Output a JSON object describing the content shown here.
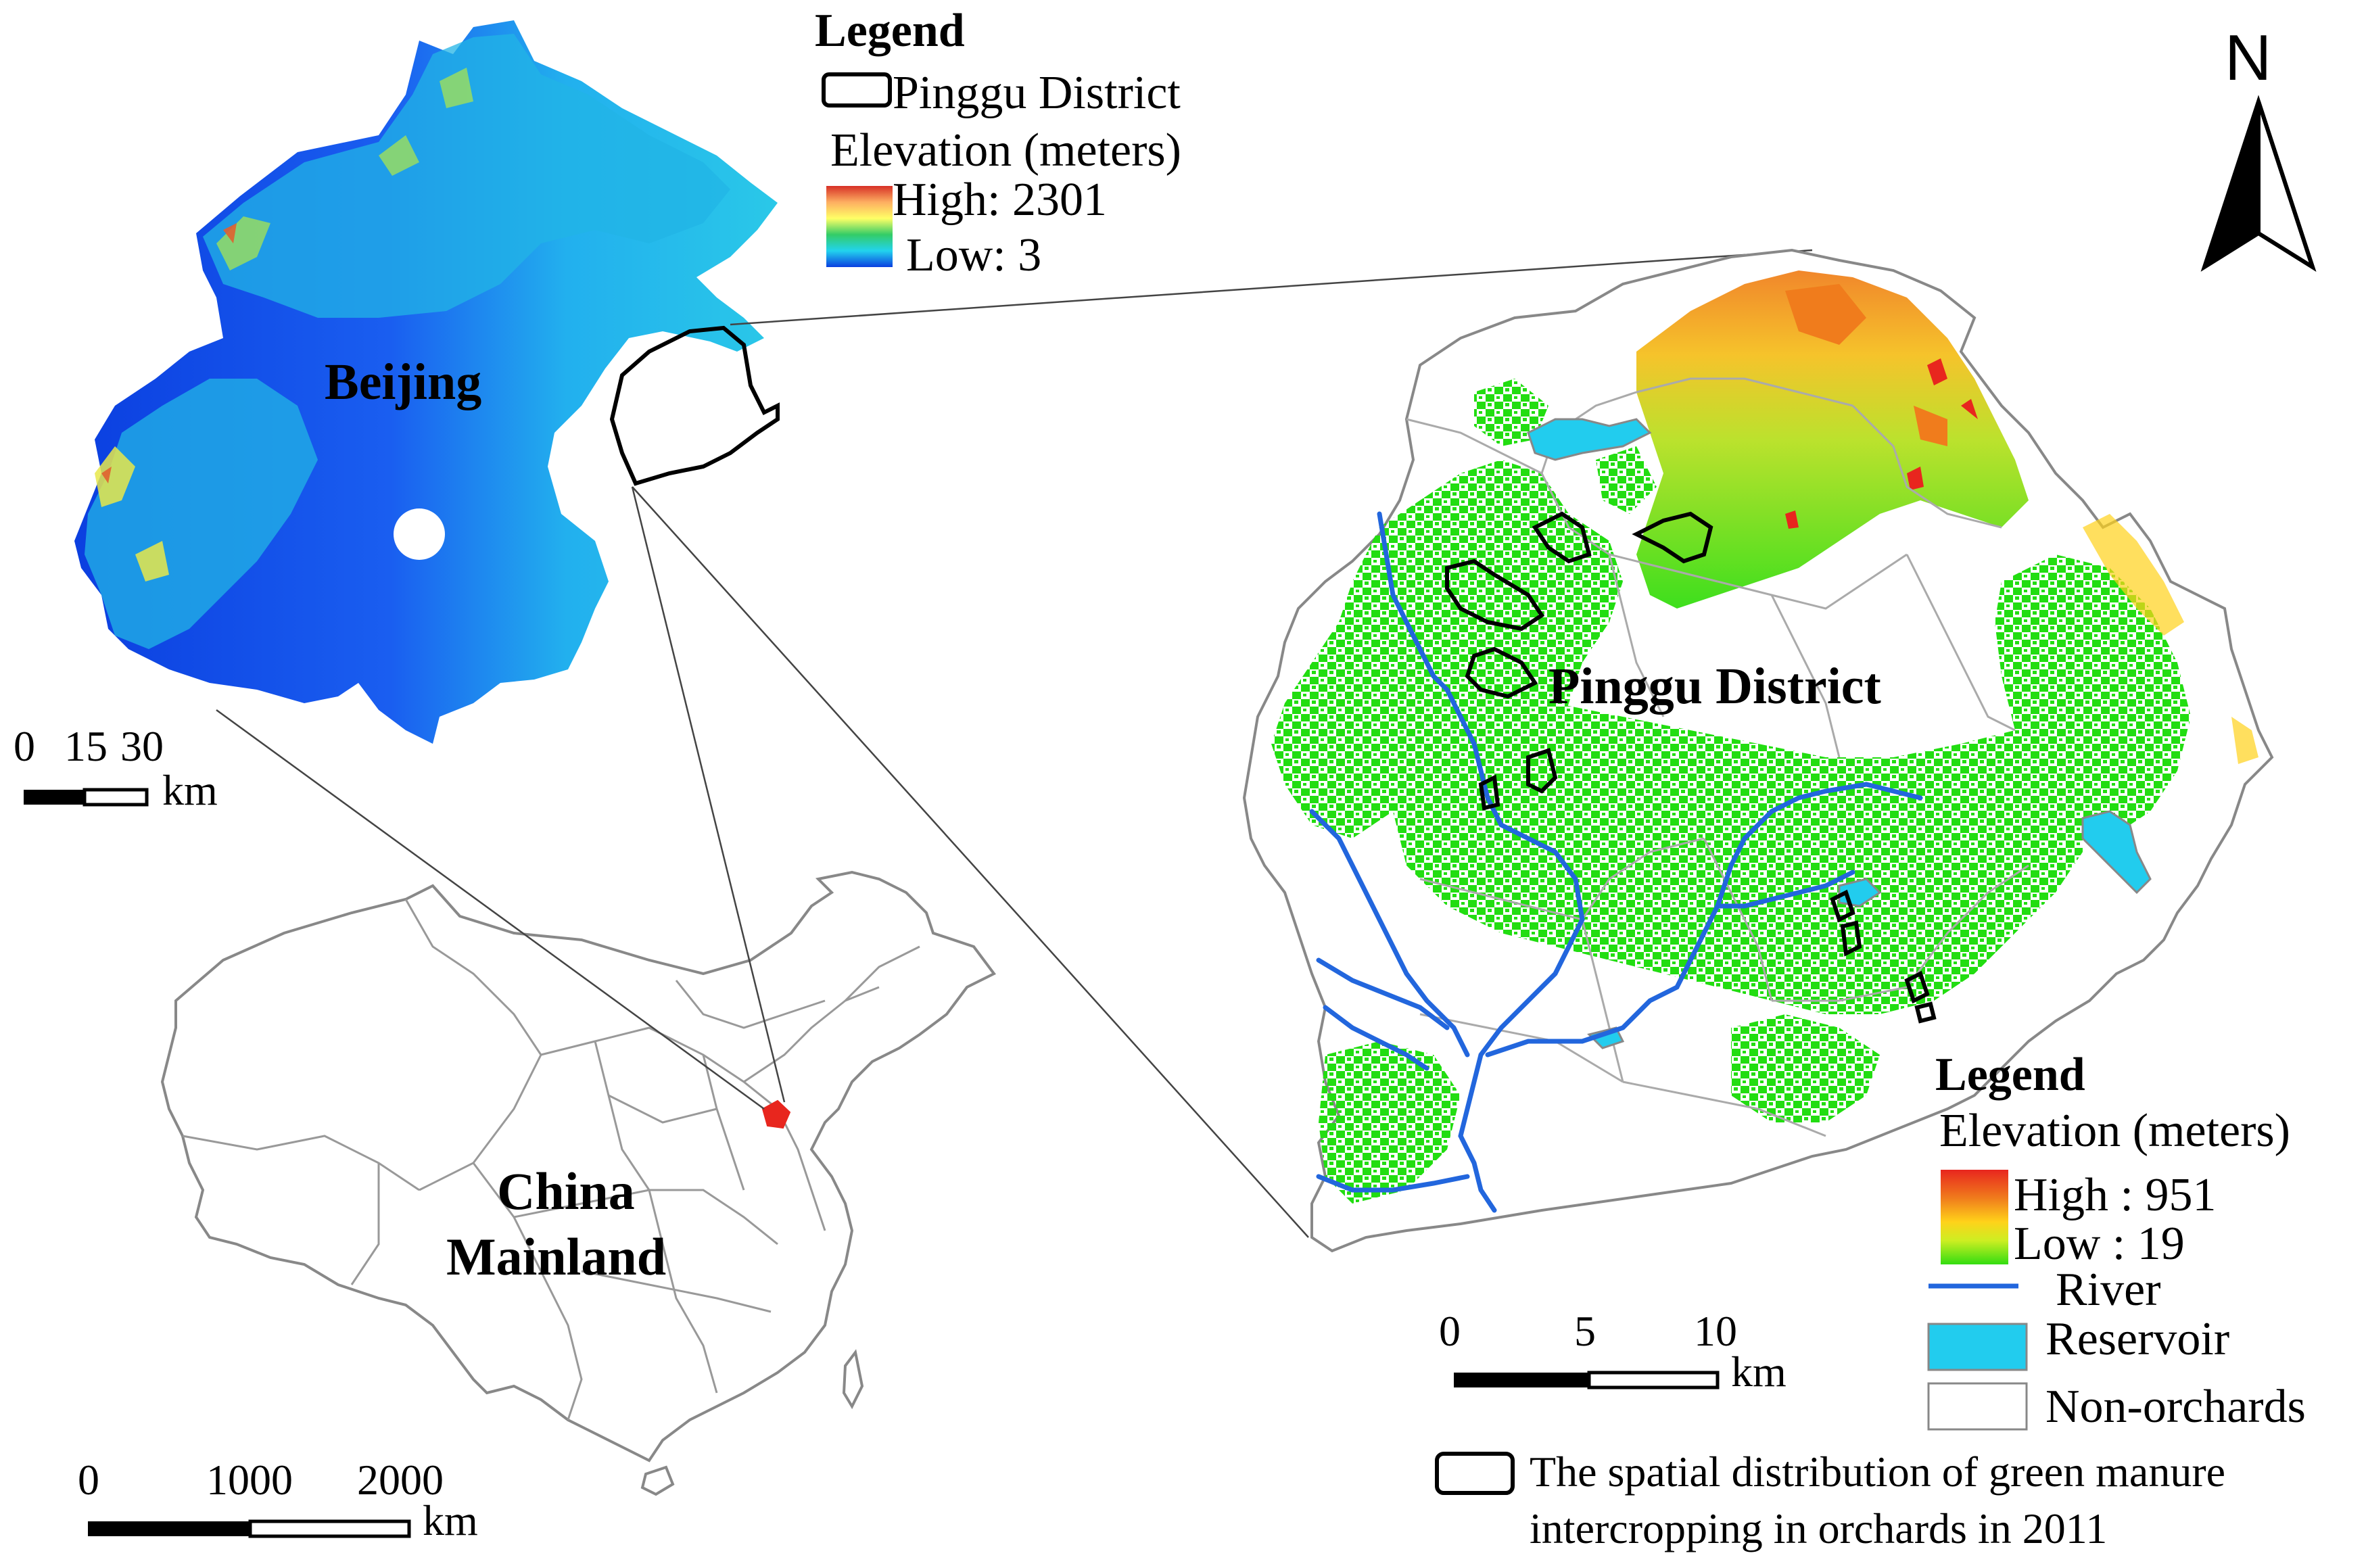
{
  "beijing_map": {
    "label": "Beijing",
    "legend": {
      "title": "Legend",
      "boundary_label": "Pinggu District",
      "elevation_title": "Elevation (meters)",
      "high_label": "High: 2301",
      "low_label": "Low: 3",
      "ramp_colors": [
        "#d73027",
        "#fdae61",
        "#ffff66",
        "#33cc66",
        "#22d3ee",
        "#0b3fe0"
      ]
    },
    "scale_bar": {
      "ticks": [
        "0",
        "15",
        "30"
      ],
      "unit": "km"
    }
  },
  "china_map": {
    "label_line1": "China",
    "label_line2": "Mainland",
    "highlight_color": "#e8261e",
    "scale_bar": {
      "ticks": [
        "0",
        "1000",
        "2000"
      ],
      "unit": "km"
    }
  },
  "pinggu_map": {
    "label": "Pinggu District",
    "legend": {
      "title": "Legend",
      "elevation_title": "Elevation (meters)",
      "high_label": "High : 951",
      "low_label": "Low : 19",
      "river_label": "River",
      "reservoir_label": "Reservoir",
      "non_orchards_label": "Non-orchards",
      "intercropping_line1": "The spatial distribution of green manure",
      "intercropping_line2": "intercropping in orchards in 2011",
      "ramp_colors": [
        "#e8261e",
        "#f07c1c",
        "#ffd21a",
        "#ccee22",
        "#33dd11"
      ],
      "river_color": "#2266dd",
      "reservoir_color": "#22ccee",
      "orchard_color": "#22dd11"
    },
    "scale_bar": {
      "ticks": [
        "0",
        "5",
        "10"
      ],
      "unit": "km"
    }
  },
  "north_arrow": {
    "label": "N"
  }
}
